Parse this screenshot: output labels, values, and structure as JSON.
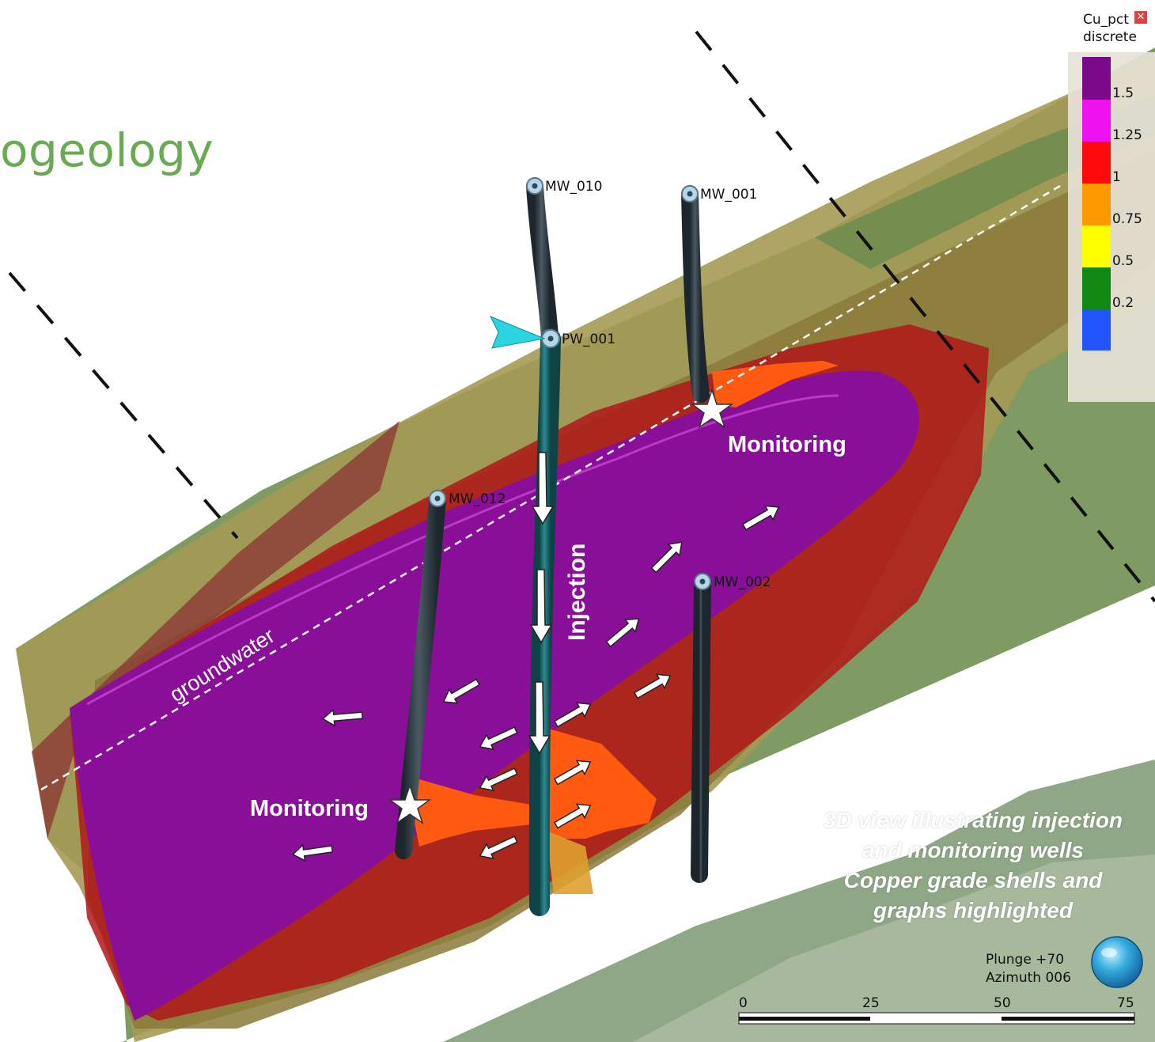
{
  "title": "ogeology",
  "wells": {
    "mw010": "MW_010",
    "mw001": "MW_001",
    "pw001": "PW_001",
    "mw012": "MW_012",
    "mw002": "MW_002"
  },
  "labels": {
    "monitoring_1": "Monitoring",
    "monitoring_2": "Monitoring",
    "injection": "Injection",
    "groundwater": "groundwater"
  },
  "caption": {
    "line1": "3D view illustrating injection",
    "line2": "and monitoring wells",
    "line3": "Copper grade shells and",
    "line4": "graphs highlighted"
  },
  "orientation": {
    "plunge": "Plunge +70",
    "azimuth": "Azimuth 006"
  },
  "scale_bar": {
    "ticks": [
      "0",
      "25",
      "50",
      "75"
    ]
  },
  "legend": {
    "title_line1": "Cu_pct",
    "title_line2": "discrete",
    "close_icon": "close-icon",
    "entries": [
      {
        "color": "#7a0a8a",
        "label": "1.5"
      },
      {
        "color": "#ee10ee",
        "label": "1.25"
      },
      {
        "color": "#ff0a0a",
        "label": "1"
      },
      {
        "color": "#ff9900",
        "label": "0.75"
      },
      {
        "color": "#ffff00",
        "label": "0.5"
      },
      {
        "color": "#118811",
        "label": "0.2"
      },
      {
        "color": "#2255ff",
        "label": ""
      }
    ]
  },
  "colors": {
    "title": "#6aaa55",
    "purple_shell": "#8a0f98",
    "red_shell": "#b8141a",
    "orange_shell": "#d87a1a",
    "green_shell": "#6f8f57",
    "well_casing": "#2f3d45",
    "injection_well": "#1f6e72"
  }
}
